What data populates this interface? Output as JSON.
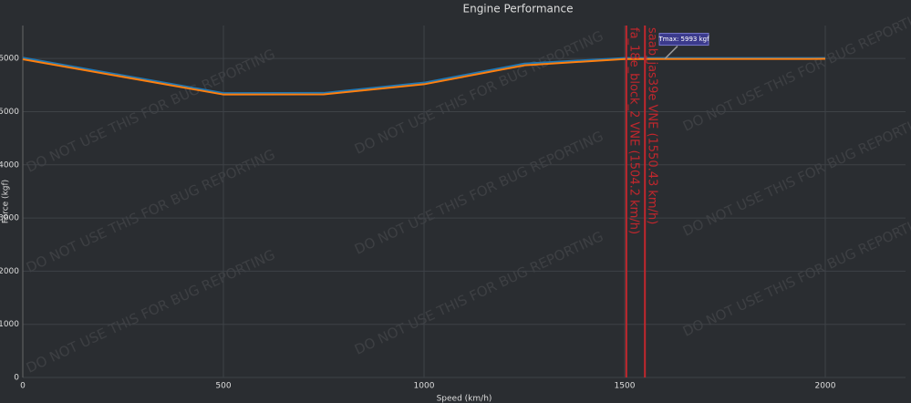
{
  "chart_data": {
    "type": "line",
    "title": "Engine Performance",
    "x_label": "Speed (km/h)",
    "y_label": "Force (kgf)",
    "x": [
      0,
      500,
      750,
      1000,
      1250,
      1500,
      2000
    ],
    "series": [
      {
        "color": "#1f77b4",
        "values": [
          6015,
          5349,
          5352,
          5545,
          5905,
          6010,
          6010
        ]
      },
      {
        "color": "#ff7f0e",
        "values": [
          5985,
          5322,
          5325,
          5515,
          5872,
          5990,
          5993
        ]
      }
    ],
    "xlim": [
      0,
      2200
    ],
    "ylim": [
      0,
      6620
    ],
    "xticks": [
      0,
      500,
      1000,
      1500,
      2000
    ],
    "yticks": [
      0,
      1000,
      2000,
      3000,
      4000,
      5000,
      6000
    ],
    "grid": true,
    "vlines": [
      {
        "x": 1504.2,
        "label": "fa_18e_block_2 VNE (1504.2 km/h)",
        "color": "#c0272d"
      },
      {
        "x": 1550.43,
        "label": "saab_jas39e VNE (1550.43 km/h)",
        "color": "#c0272d"
      }
    ],
    "annotations": [
      {
        "text": "Tmax: 5993 kgf",
        "x": 1600,
        "y": 5993
      }
    ],
    "watermark": "DO NOT USE THIS FOR BUG REPORTING"
  }
}
